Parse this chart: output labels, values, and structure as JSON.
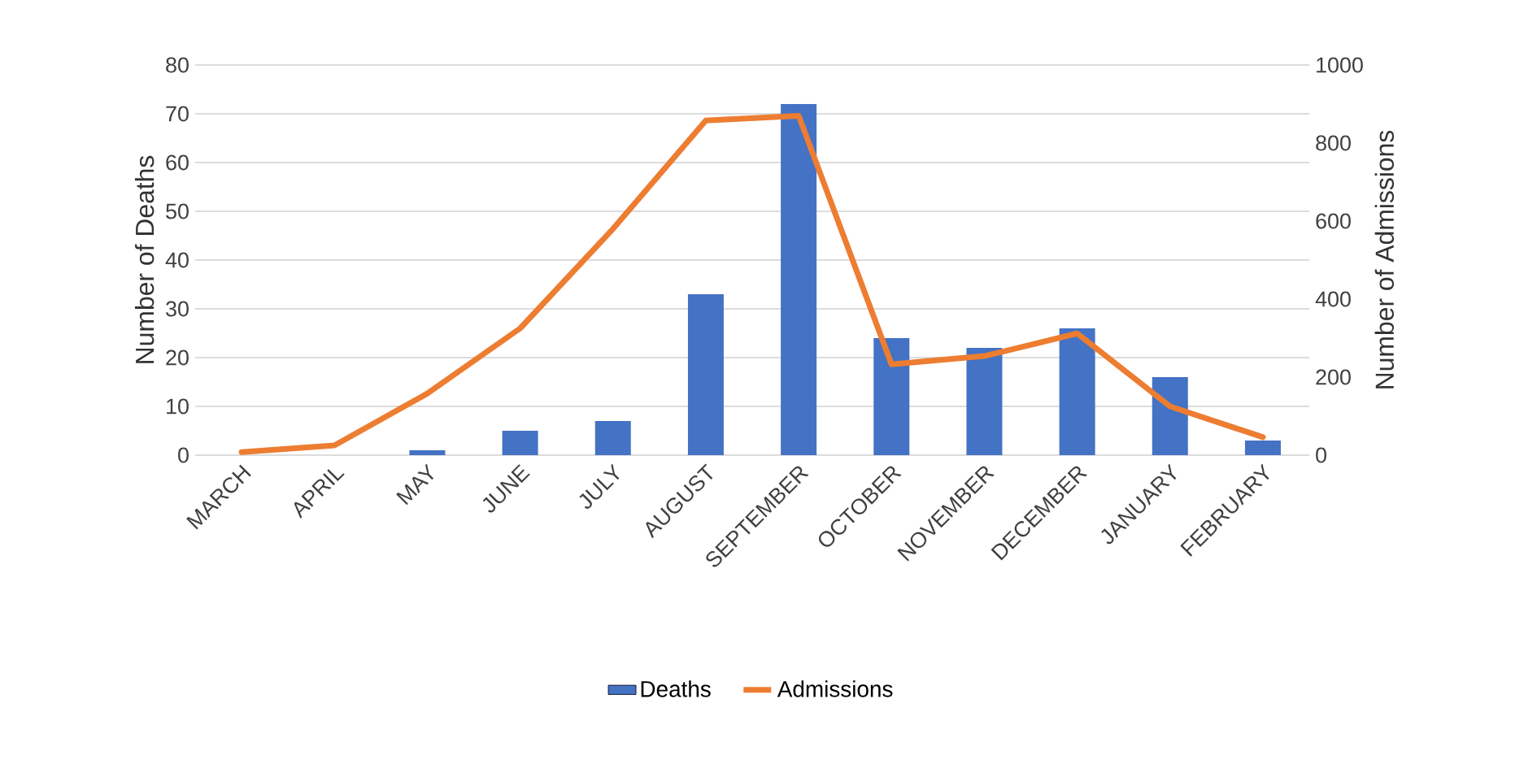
{
  "chart_data": {
    "type": "bar",
    "categories": [
      "MARCH",
      "APRIL",
      "MAY",
      "JUNE",
      "JULY",
      "AUGUST",
      "SEPTEMBER",
      "OCTOBER",
      "NOVEMBER",
      "DECEMBER",
      "JANUARY",
      "FEBRUARY"
    ],
    "ylabel": "Number of Deaths",
    "y2label": "Number of Admissions",
    "ylim": [
      0,
      80
    ],
    "yticks": [
      0,
      10,
      20,
      30,
      40,
      50,
      60,
      70,
      80
    ],
    "y2lim": [
      0,
      1000
    ],
    "y2ticks": [
      0,
      200,
      400,
      600,
      800,
      1000
    ],
    "grid": "y",
    "legend": "bottom",
    "series": [
      {
        "name": "Deaths",
        "color": "#4472c4",
        "values": [
          0,
          0,
          1,
          5,
          7,
          33,
          72,
          24,
          22,
          26,
          16,
          3
        ]
      },
      {
        "name": "Admissions",
        "type": "line",
        "axis": "y2",
        "color": "#ed7d31",
        "marker": "none",
        "line_style": "solid",
        "values": [
          8,
          25,
          158,
          325,
          580,
          858,
          870,
          233,
          254,
          312,
          125,
          46
        ]
      }
    ]
  }
}
